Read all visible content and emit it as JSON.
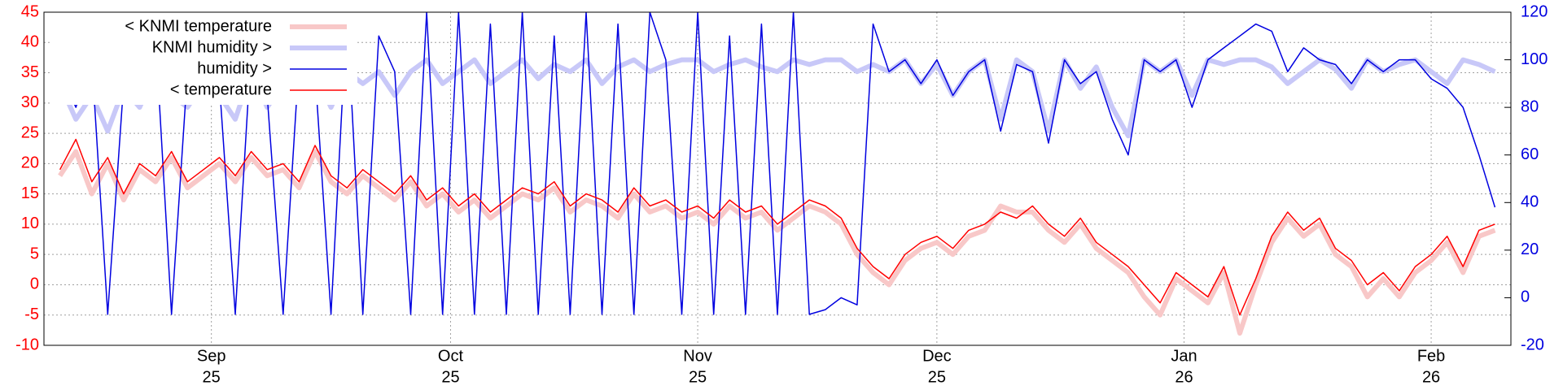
{
  "chart_data": {
    "type": "line",
    "x": [
      "2025-08-13",
      "2025-08-15",
      "2025-08-17",
      "2025-08-19",
      "2025-08-21",
      "2025-08-23",
      "2025-08-25",
      "2025-08-27",
      "2025-08-29",
      "2025-08-31",
      "2025-09-02",
      "2025-09-04",
      "2025-09-06",
      "2025-09-08",
      "2025-09-10",
      "2025-09-12",
      "2025-09-14",
      "2025-09-16",
      "2025-09-18",
      "2025-09-20",
      "2025-09-22",
      "2025-09-24",
      "2025-09-26",
      "2025-09-28",
      "2025-09-30",
      "2025-10-02",
      "2025-10-04",
      "2025-10-06",
      "2025-10-08",
      "2025-10-10",
      "2025-10-12",
      "2025-10-14",
      "2025-10-16",
      "2025-10-18",
      "2025-10-20",
      "2025-10-22",
      "2025-10-24",
      "2025-10-26",
      "2025-10-28",
      "2025-10-30",
      "2025-11-01",
      "2025-11-03",
      "2025-11-05",
      "2025-11-07",
      "2025-11-09",
      "2025-11-11",
      "2025-11-13",
      "2025-11-15",
      "2025-11-17",
      "2025-11-19",
      "2025-11-21",
      "2025-11-23",
      "2025-11-25",
      "2025-11-27",
      "2025-11-29",
      "2025-12-01",
      "2025-12-03",
      "2025-12-05",
      "2025-12-07",
      "2025-12-09",
      "2025-12-11",
      "2025-12-13",
      "2025-12-15",
      "2025-12-17",
      "2025-12-19",
      "2025-12-21",
      "2025-12-23",
      "2025-12-25",
      "2025-12-27",
      "2025-12-29",
      "2025-12-31",
      "2026-01-02",
      "2026-01-04",
      "2026-01-06",
      "2026-01-08",
      "2026-01-10",
      "2026-01-12",
      "2026-01-14",
      "2026-01-16",
      "2026-01-18",
      "2026-01-20",
      "2026-01-22",
      "2026-01-24",
      "2026-01-26",
      "2026-01-28",
      "2026-01-30",
      "2026-02-01",
      "2026-02-03",
      "2026-02-05",
      "2026-02-07",
      "2026-02-09"
    ],
    "series": [
      {
        "name": "< KNMI temperature",
        "color": "#f8c8c8",
        "width": 6,
        "axis": "y",
        "values": [
          18,
          22,
          15,
          20,
          14,
          19,
          17,
          21,
          16,
          18,
          20,
          17,
          21,
          18,
          19,
          16,
          22,
          17,
          15,
          18,
          16,
          14,
          17,
          13,
          15,
          12,
          14,
          11,
          13,
          15,
          14,
          16,
          12,
          14,
          13,
          11,
          15,
          12,
          13,
          11,
          12,
          10,
          13,
          11,
          12,
          9,
          11,
          13,
          12,
          10,
          5,
          2,
          0,
          4,
          6,
          7,
          5,
          8,
          9,
          13,
          12,
          12,
          9,
          7,
          10,
          6,
          4,
          2,
          -2,
          -5,
          1,
          -1,
          -3,
          2,
          -8,
          0,
          7,
          11,
          8,
          10,
          5,
          3,
          -2,
          1,
          -2,
          2,
          4,
          7,
          2,
          8,
          9
        ]
      },
      {
        "name": "KNMI humidity >",
        "color": "#c8c8f8",
        "width": 6,
        "axis": "y2",
        "values": [
          90,
          75,
          85,
          70,
          88,
          80,
          95,
          85,
          80,
          90,
          85,
          75,
          95,
          80,
          90,
          85,
          95,
          80,
          95,
          90,
          95,
          85,
          95,
          100,
          90,
          95,
          100,
          90,
          95,
          100,
          92,
          98,
          95,
          100,
          90,
          97,
          100,
          95,
          98,
          100,
          100,
          95,
          98,
          100,
          97,
          95,
          100,
          98,
          100,
          100,
          95,
          98,
          95,
          100,
          90,
          98,
          85,
          95,
          100,
          75,
          100,
          95,
          70,
          100,
          88,
          97,
          80,
          68,
          100,
          95,
          100,
          85,
          100,
          98,
          100,
          100,
          97,
          90,
          95,
          100,
          96,
          88,
          100,
          95,
          98,
          100,
          95,
          90,
          100,
          98,
          95
        ]
      },
      {
        "name": "humidity >",
        "color": "#0000e0",
        "width": 1.5,
        "axis": "y2",
        "values": [
          95,
          80,
          100,
          -7,
          90,
          85,
          110,
          -7,
          95,
          100,
          90,
          -7,
          105,
          85,
          -7,
          100,
          95,
          -7,
          120,
          -7,
          110,
          95,
          -7,
          120,
          -7,
          120,
          -7,
          115,
          -7,
          120,
          -7,
          110,
          -7,
          120,
          -7,
          115,
          -7,
          120,
          100,
          -7,
          120,
          -7,
          110,
          -7,
          115,
          -7,
          120,
          -7,
          -5,
          0,
          -3,
          115,
          95,
          100,
          90,
          100,
          85,
          95,
          100,
          70,
          98,
          95,
          65,
          100,
          90,
          95,
          75,
          60,
          100,
          95,
          100,
          80,
          100,
          105,
          110,
          115,
          112,
          95,
          105,
          100,
          98,
          90,
          100,
          95,
          100,
          100,
          92,
          88,
          80,
          60,
          38
        ]
      },
      {
        "name": "< temperature",
        "color": "#ff0000",
        "width": 1.5,
        "axis": "y",
        "values": [
          19,
          24,
          17,
          21,
          15,
          20,
          18,
          22,
          17,
          19,
          21,
          18,
          22,
          19,
          20,
          17,
          23,
          18,
          16,
          19,
          17,
          15,
          18,
          14,
          16,
          13,
          15,
          12,
          14,
          16,
          15,
          17,
          13,
          15,
          14,
          12,
          16,
          13,
          14,
          12,
          13,
          11,
          14,
          12,
          13,
          10,
          12,
          14,
          13,
          11,
          6,
          3,
          1,
          5,
          7,
          8,
          6,
          9,
          10,
          12,
          11,
          13,
          10,
          8,
          11,
          7,
          5,
          3,
          0,
          -3,
          2,
          0,
          -2,
          3,
          -5,
          1,
          8,
          12,
          9,
          11,
          6,
          4,
          0,
          2,
          -1,
          3,
          5,
          8,
          3,
          9,
          10
        ]
      }
    ],
    "xlim": [
      "2025-08-11",
      "2026-02-11"
    ],
    "xticks": [
      {
        "value": "2025-09-01",
        "label": [
          "Sep",
          "25"
        ]
      },
      {
        "value": "2025-10-01",
        "label": [
          "Oct",
          "25"
        ]
      },
      {
        "value": "2025-11-01",
        "label": [
          "Nov",
          "25"
        ]
      },
      {
        "value": "2025-12-01",
        "label": [
          "Dec",
          "25"
        ]
      },
      {
        "value": "2026-01-01",
        "label": [
          "Jan",
          "26"
        ]
      },
      {
        "value": "2026-02-01",
        "label": [
          "Feb",
          "26"
        ]
      }
    ],
    "ylim": [
      -10,
      45
    ],
    "yticks": [
      -10,
      -5,
      0,
      5,
      10,
      15,
      20,
      25,
      30,
      35,
      40,
      45
    ],
    "ycolor": "#ff0000",
    "y2lim": [
      -20,
      120
    ],
    "y2ticks": [
      -20,
      0,
      20,
      40,
      60,
      80,
      100,
      120
    ],
    "y2color": "#0000e0",
    "grid": true,
    "legend": "top-left"
  }
}
